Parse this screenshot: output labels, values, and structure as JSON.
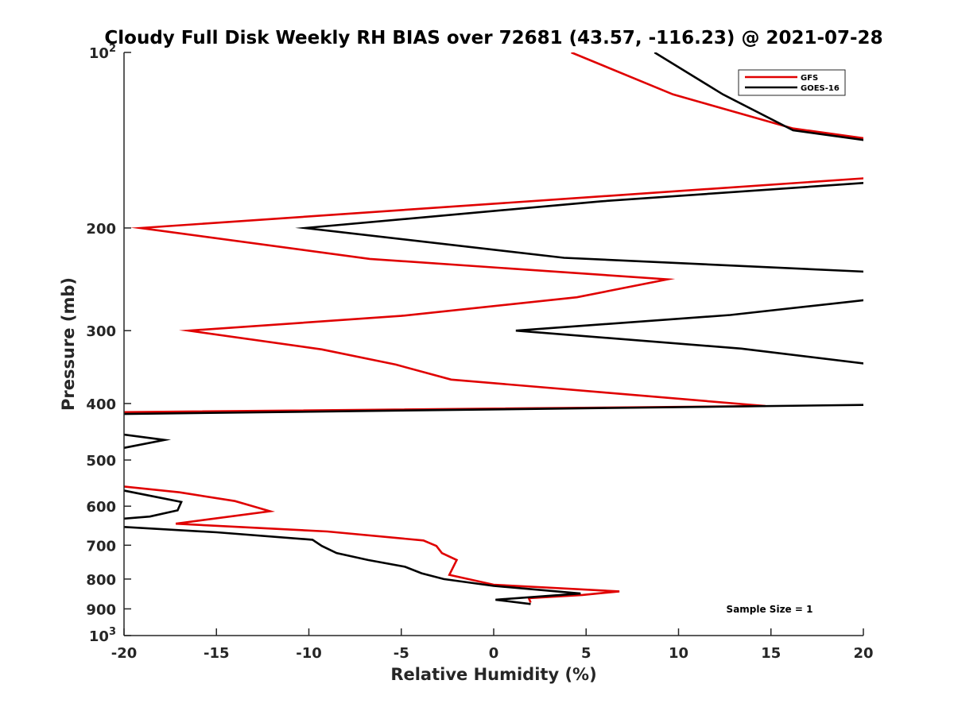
{
  "chart_data": {
    "type": "line",
    "title": "Cloudy Full Disk Weekly RH BIAS over 72681 (43.57, -116.23) @ 2021-07-28",
    "xlabel": "Relative Humidity (%)",
    "ylabel": "Pressure (mb)",
    "xlim": [
      -20,
      20
    ],
    "ylim": [
      100,
      1000
    ],
    "y_scale": "log",
    "y_reversed": true,
    "grid": false,
    "legend_position": "top-right",
    "x_ticks": [
      {
        "value": -20,
        "label": "-20"
      },
      {
        "value": -15,
        "label": "-15"
      },
      {
        "value": -10,
        "label": "-10"
      },
      {
        "value": -5,
        "label": "-5"
      },
      {
        "value": 0,
        "label": "0"
      },
      {
        "value": 5,
        "label": "5"
      },
      {
        "value": 10,
        "label": "10"
      },
      {
        "value": 15,
        "label": "15"
      },
      {
        "value": 20,
        "label": "20"
      }
    ],
    "y_ticks": [
      {
        "value": 100,
        "base": "10",
        "exp": "2"
      },
      {
        "value": 200,
        "label": "200"
      },
      {
        "value": 300,
        "label": "300"
      },
      {
        "value": 400,
        "label": "400"
      },
      {
        "value": 500,
        "label": "500"
      },
      {
        "value": 600,
        "label": "600"
      },
      {
        "value": 700,
        "label": "700"
      },
      {
        "value": 800,
        "label": "800"
      },
      {
        "value": 900,
        "label": "900"
      },
      {
        "value": 1000,
        "base": "10",
        "exp": "3"
      }
    ],
    "annotation": "Sample Size = 1",
    "series": [
      {
        "name": "GFS",
        "color": "#e00000",
        "segments": [
          [
            [
              4.2,
              100
            ],
            [
              9.7,
              118
            ],
            [
              16.2,
              135
            ],
            [
              20.5,
              141
            ]
          ],
          [
            [
              20.5,
              164
            ],
            [
              -19.1,
              200
            ],
            [
              -6.7,
              226
            ],
            [
              9.4,
              245
            ],
            [
              4.5,
              263
            ],
            [
              -5.0,
              283
            ],
            [
              -16.5,
              300
            ],
            [
              -9.3,
              323
            ],
            [
              -5.3,
              343
            ],
            [
              -2.3,
              364
            ],
            [
              6.0,
              383
            ],
            [
              14.7,
              404
            ],
            [
              -20.5,
              414
            ]
          ],
          [
            [
              -20.5,
              553
            ],
            [
              -17.0,
              568
            ],
            [
              -14.0,
              588
            ],
            [
              -12.1,
              612
            ],
            [
              -17.2,
              643
            ],
            [
              -9.0,
              663
            ],
            [
              -3.8,
              687
            ],
            [
              -3.1,
              702
            ],
            [
              -2.8,
              722
            ],
            [
              -2.0,
              742
            ],
            [
              -2.4,
              787
            ],
            [
              0.0,
              818
            ],
            [
              6.8,
              840
            ],
            [
              4.8,
              852
            ],
            [
              1.9,
              863
            ],
            [
              2.0,
              878
            ]
          ]
        ]
      },
      {
        "name": "GOES-16",
        "color": "#000000",
        "segments": [
          [
            [
              8.7,
              100
            ],
            [
              12.4,
              118
            ],
            [
              16.2,
              136
            ],
            [
              20.5,
              142
            ]
          ],
          [
            [
              20.5,
              167
            ],
            [
              5.8,
              180
            ],
            [
              -10.2,
              200
            ],
            [
              3.8,
              225
            ],
            [
              20.5,
              238
            ]
          ],
          [
            [
              20.5,
              265
            ],
            [
              12.8,
              282
            ],
            [
              1.2,
              300
            ],
            [
              13.4,
              322
            ],
            [
              20.5,
              343
            ]
          ],
          [
            [
              20.5,
              402
            ],
            [
              -20.5,
              417
            ]
          ],
          [
            [
              -20.5,
              450
            ],
            [
              -17.8,
              462
            ],
            [
              -20.5,
              480
            ]
          ],
          [
            [
              -20.5,
              560
            ],
            [
              -16.9,
              590
            ],
            [
              -17.1,
              610
            ],
            [
              -18.6,
              625
            ],
            [
              -20.5,
              632
            ]
          ],
          [
            [
              -20.5,
              650
            ],
            [
              -15.0,
              665
            ],
            [
              -9.8,
              685
            ],
            [
              -9.3,
              702
            ],
            [
              -8.5,
              722
            ],
            [
              -6.8,
              742
            ],
            [
              -4.8,
              762
            ],
            [
              -3.9,
              782
            ],
            [
              -2.7,
              800
            ],
            [
              0.0,
              822
            ],
            [
              4.7,
              847
            ],
            [
              0.1,
              868
            ],
            [
              2.0,
              883
            ]
          ]
        ]
      }
    ]
  }
}
